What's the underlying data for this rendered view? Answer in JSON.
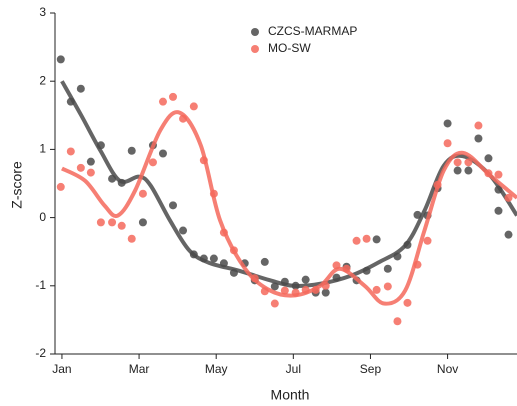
{
  "chart_data": {
    "type": "scatter",
    "x_label": "Month",
    "y_label": "Z-score",
    "xlim": [
      0.82,
      12.8
    ],
    "ylim": [
      -2,
      3
    ],
    "xticks": [
      {
        "value": 1,
        "label": "Jan"
      },
      {
        "value": 3,
        "label": "Mar"
      },
      {
        "value": 5,
        "label": "May"
      },
      {
        "value": 7,
        "label": "Jul"
      },
      {
        "value": 9,
        "label": "Sep"
      },
      {
        "value": 11,
        "label": "Nov"
      }
    ],
    "yticks": [
      -2,
      -1,
      0,
      1,
      2,
      3
    ],
    "legend": "upper center",
    "series": [
      {
        "name": "CZCS-MARMAP",
        "color": "#4a4a4a",
        "x": [
          0.97,
          1.23,
          1.49,
          1.75,
          2.01,
          2.3,
          2.55,
          2.81,
          3.1,
          3.36,
          3.62,
          3.88,
          4.14,
          4.42,
          4.68,
          4.94,
          5.2,
          5.46,
          5.74,
          6.0,
          6.26,
          6.52,
          6.78,
          7.06,
          7.32,
          7.58,
          7.84,
          8.12,
          8.38,
          8.64,
          8.9,
          9.16,
          9.45,
          9.7,
          9.96,
          10.22,
          10.48,
          10.74,
          11.0,
          11.26,
          11.54,
          11.8,
          12.06,
          12.32,
          12.32,
          12.58
        ],
        "values": [
          2.32,
          1.7,
          1.89,
          0.82,
          1.06,
          0.57,
          0.51,
          0.98,
          -0.07,
          1.06,
          0.94,
          0.18,
          -0.19,
          -0.54,
          -0.6,
          -0.6,
          -0.67,
          -0.81,
          -0.67,
          -0.92,
          -0.65,
          -1.01,
          -0.94,
          -1.0,
          -0.91,
          -1.1,
          -1.1,
          -0.88,
          -0.72,
          -0.92,
          -0.78,
          -0.32,
          -0.75,
          -0.57,
          -0.4,
          0.04,
          0.03,
          0.43,
          1.38,
          0.69,
          0.69,
          1.16,
          0.87,
          0.41,
          0.1,
          -0.25
        ],
        "fit_x": [
          1,
          1.5,
          2,
          2.5,
          3,
          3.3,
          3.8,
          4.3,
          4.8,
          5.6,
          6.4,
          7.0,
          7.7,
          8.5,
          9.2,
          9.9,
          10.4,
          10.9,
          11.4,
          12.1,
          12.8
        ],
        "fit_values": [
          2.0,
          1.5,
          0.98,
          0.54,
          0.6,
          0.47,
          -0.04,
          -0.48,
          -0.66,
          -0.78,
          -0.92,
          -1.0,
          -0.97,
          -0.85,
          -0.66,
          -0.41,
          0.1,
          0.76,
          0.9,
          0.62,
          0.03
        ]
      },
      {
        "name": "MO-SW",
        "color": "#f4685c",
        "x": [
          0.97,
          1.23,
          1.49,
          1.75,
          2.01,
          2.3,
          2.55,
          2.81,
          3.1,
          3.36,
          3.62,
          3.88,
          4.14,
          4.42,
          4.68,
          4.94,
          5.2,
          5.46,
          6.0,
          6.26,
          6.52,
          6.78,
          7.06,
          7.32,
          7.58,
          7.84,
          8.12,
          8.38,
          8.64,
          8.9,
          9.16,
          9.45,
          9.7,
          9.96,
          10.22,
          10.48,
          10.74,
          11.0,
          11.26,
          11.54,
          11.8,
          12.06,
          12.32,
          12.58
        ],
        "values": [
          0.45,
          0.97,
          0.73,
          0.66,
          -0.07,
          -0.07,
          -0.12,
          -0.31,
          0.35,
          0.81,
          1.7,
          1.77,
          1.45,
          1.63,
          0.84,
          0.35,
          -0.22,
          -0.48,
          -0.89,
          -1.08,
          -1.26,
          -1.07,
          -1.1,
          -1.06,
          -1.06,
          -1.0,
          -0.7,
          -0.75,
          -0.34,
          -0.31,
          -1.06,
          -1.01,
          -1.52,
          -1.25,
          -0.69,
          -0.34,
          0.48,
          1.09,
          0.81,
          0.81,
          1.35,
          0.65,
          0.63,
          0.29
        ],
        "fit_x": [
          1,
          1.6,
          2.1,
          2.45,
          2.9,
          3.55,
          4.05,
          4.6,
          5.1,
          5.75,
          6.4,
          7.05,
          7.7,
          8.2,
          8.85,
          9.35,
          9.9,
          10.4,
          10.9,
          11.4,
          12.1,
          12.8
        ],
        "fit_values": [
          0.72,
          0.54,
          0.18,
          0.03,
          0.4,
          1.28,
          1.54,
          1.06,
          -0.04,
          -0.75,
          -1.07,
          -1.14,
          -1.0,
          -0.75,
          -1.0,
          -1.26,
          -1.07,
          -0.19,
          0.69,
          0.95,
          0.62,
          0.29
        ]
      }
    ]
  }
}
